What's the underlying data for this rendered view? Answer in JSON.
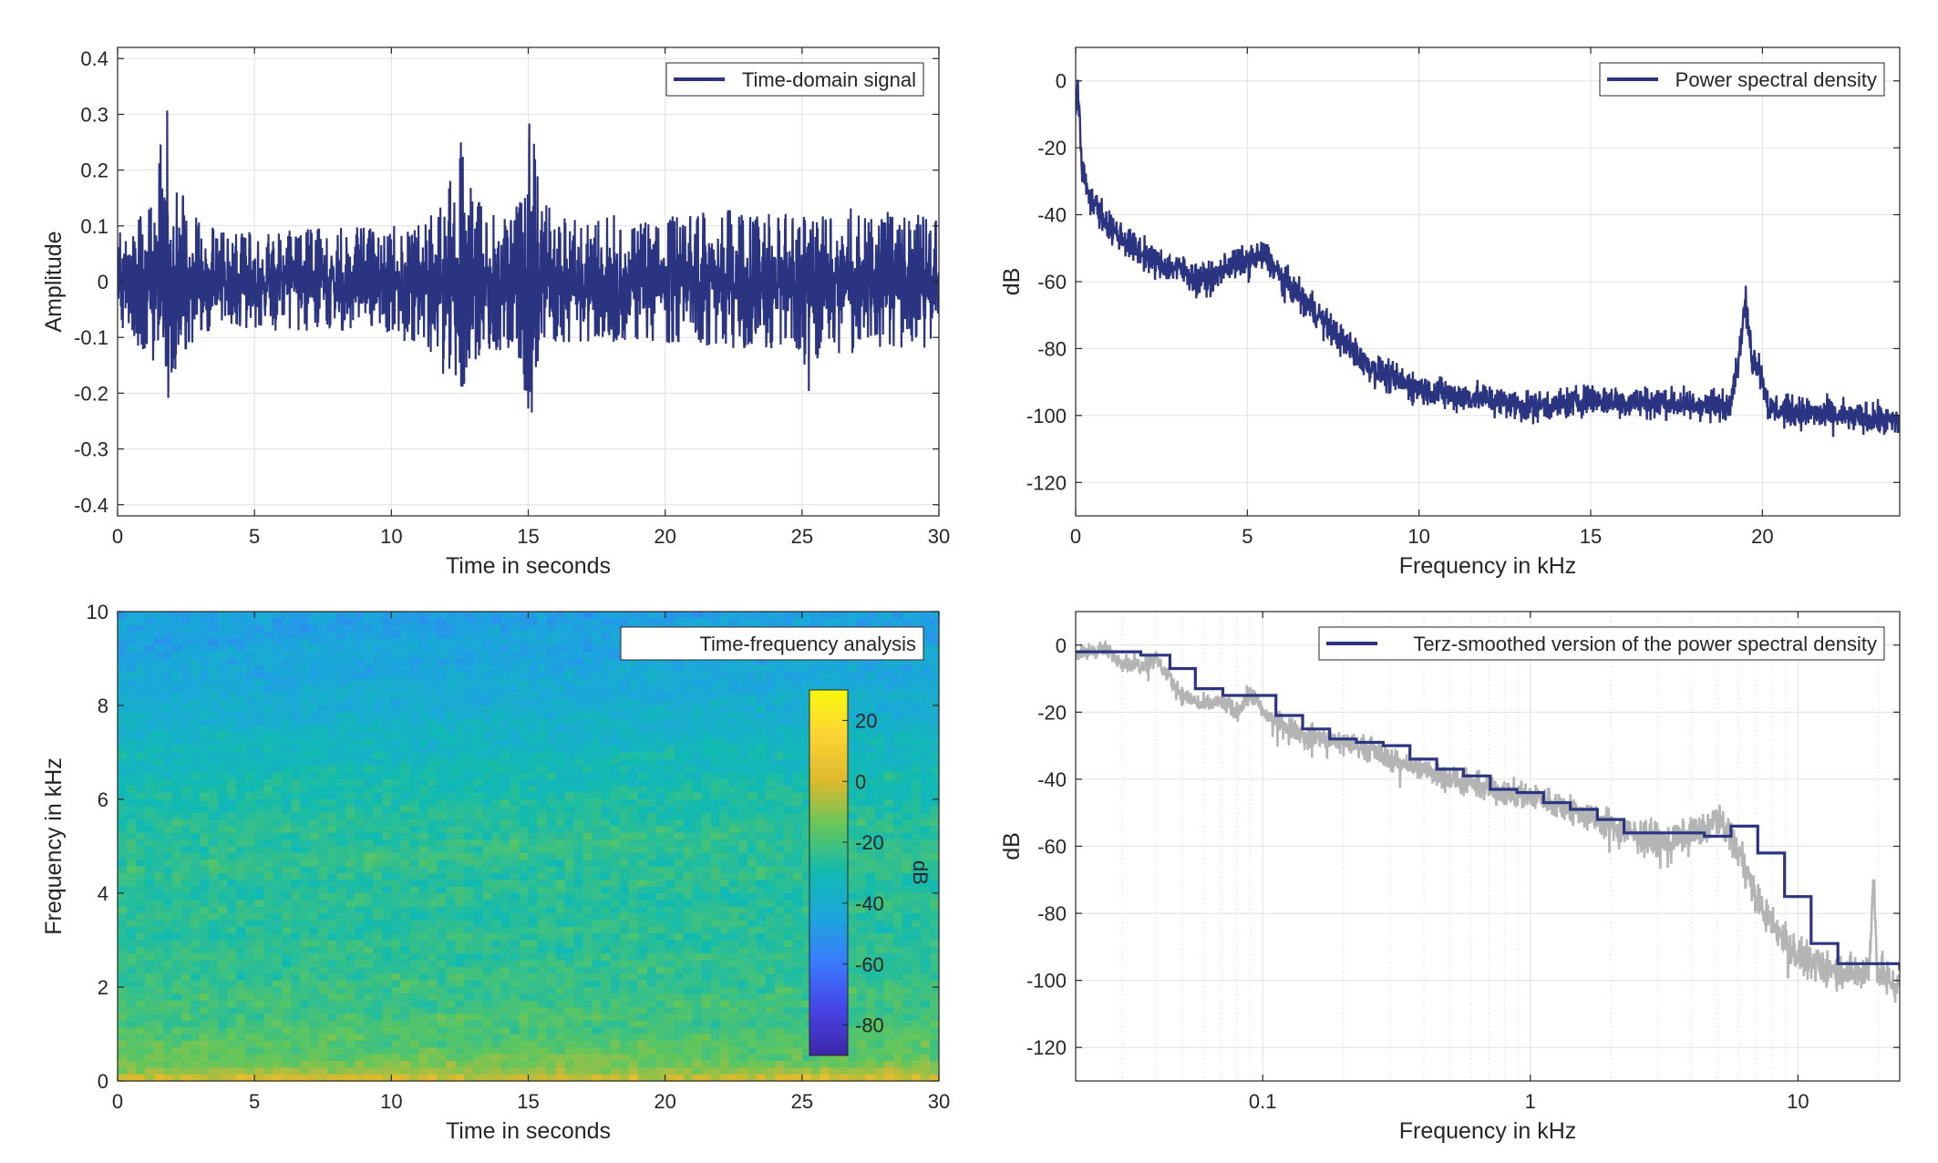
{
  "colors": {
    "series_main": "#2b3480",
    "series_raw_gray": "#b4b4b4",
    "grid": "#e1e1e1",
    "axis": "#262626",
    "colormap": [
      "#3e26a8",
      "#4744e5",
      "#3a79fc",
      "#1ca6dd",
      "#11bab1",
      "#62c65c",
      "#ddb92d",
      "#fcd334",
      "#f8fa0d"
    ]
  },
  "chart_data": [
    {
      "id": "time_domain",
      "type": "line",
      "xlabel": "Time in seconds",
      "ylabel": "Amplitude",
      "xlim": [
        0,
        30
      ],
      "ylim": [
        -0.42,
        0.42
      ],
      "xticks": [
        0,
        5,
        10,
        15,
        20,
        25,
        30
      ],
      "xtick_labels": [
        "0",
        "5",
        "10",
        "15",
        "20",
        "25",
        "30"
      ],
      "yticks": [
        0.4,
        0.3,
        0.2,
        0.1,
        0,
        -0.1,
        -0.2,
        -0.3,
        -0.4
      ],
      "ytick_labels": [
        "0.4",
        "0.3",
        "0.2",
        "0.1",
        "0",
        "-0.1",
        "-0.2",
        "-0.3",
        "-0.4"
      ],
      "grid": true,
      "legend": "top-right",
      "series": [
        {
          "name": "Time-domain signal",
          "envelope_t": [
            0,
            0.5,
            1.0,
            1.4,
            1.7,
            1.8,
            1.9,
            2.2,
            2.6,
            3.0,
            4.0,
            6.0,
            8.0,
            10.0,
            11.5,
            12.0,
            12.5,
            12.7,
            12.9,
            13.5,
            14.5,
            14.9,
            15.1,
            15.3,
            15.6,
            16.0,
            18.0,
            20.0,
            22.0,
            24.0,
            25.0,
            25.3,
            25.6,
            27.0,
            28.5,
            30.0
          ],
          "envelope_upper": [
            0.1,
            0.11,
            0.13,
            0.18,
            0.3,
            0.34,
            0.24,
            0.18,
            0.13,
            0.11,
            0.09,
            0.09,
            0.1,
            0.1,
            0.12,
            0.17,
            0.25,
            0.28,
            0.17,
            0.13,
            0.13,
            0.2,
            0.35,
            0.23,
            0.15,
            0.12,
            0.12,
            0.12,
            0.13,
            0.12,
            0.13,
            0.12,
            0.12,
            0.14,
            0.13,
            0.11
          ],
          "envelope_lower": [
            -0.09,
            -0.1,
            -0.13,
            -0.18,
            -0.25,
            -0.27,
            -0.21,
            -0.15,
            -0.12,
            -0.1,
            -0.08,
            -0.09,
            -0.09,
            -0.1,
            -0.13,
            -0.18,
            -0.2,
            -0.19,
            -0.16,
            -0.12,
            -0.13,
            -0.2,
            -0.26,
            -0.18,
            -0.13,
            -0.11,
            -0.11,
            -0.11,
            -0.12,
            -0.12,
            -0.13,
            -0.21,
            -0.13,
            -0.13,
            -0.12,
            -0.12
          ]
        }
      ]
    },
    {
      "id": "psd",
      "type": "line",
      "xlabel": "Frequency in kHz",
      "ylabel": "dB",
      "xlim": [
        0,
        24
      ],
      "ylim": [
        -130,
        10
      ],
      "xticks": [
        0,
        5,
        10,
        15,
        20
      ],
      "xtick_labels": [
        "0",
        "5",
        "10",
        "15",
        "20"
      ],
      "yticks": [
        0,
        -20,
        -40,
        -60,
        -80,
        -100,
        -120
      ],
      "ytick_labels": [
        "0",
        "-20",
        "-40",
        "-60",
        "-80",
        "-100",
        "-120"
      ],
      "grid": true,
      "legend": "top-right",
      "series": [
        {
          "name": "Power spectral density",
          "x": [
            0,
            0.05,
            0.2,
            0.5,
            1.0,
            1.5,
            2.0,
            2.5,
            3.0,
            3.5,
            4.0,
            4.5,
            5.0,
            5.5,
            6.0,
            6.5,
            7.0,
            7.5,
            8.0,
            8.5,
            9.0,
            9.5,
            10.0,
            11.0,
            12.0,
            13.0,
            14.0,
            15.0,
            16.0,
            17.0,
            18.0,
            18.5,
            19.0,
            19.3,
            19.5,
            19.7,
            19.9,
            20.2,
            21.0,
            22.0,
            23.0,
            24.0
          ],
          "y": [
            -10,
            0,
            -28,
            -36,
            -44,
            -48,
            -52,
            -55,
            -56,
            -59,
            -59,
            -55,
            -54,
            -52,
            -59,
            -64,
            -69,
            -75,
            -80,
            -85,
            -88,
            -90,
            -92,
            -94,
            -95,
            -97,
            -97,
            -95,
            -96,
            -96,
            -97,
            -97,
            -97,
            -84,
            -66,
            -83,
            -85,
            -98,
            -99,
            -100,
            -101,
            -102
          ],
          "spread": 4
        }
      ]
    },
    {
      "id": "spectrogram",
      "type": "heatmap",
      "xlabel": "Time in seconds",
      "ylabel": "Frequency in kHz",
      "xlim": [
        0,
        30
      ],
      "ylim": [
        0,
        10
      ],
      "xticks": [
        0,
        5,
        10,
        15,
        20,
        25,
        30
      ],
      "xtick_labels": [
        "0",
        "5",
        "10",
        "15",
        "20",
        "25",
        "30"
      ],
      "yticks": [
        0,
        2,
        4,
        6,
        8,
        10
      ],
      "ytick_labels": [
        "0",
        "2",
        "4",
        "6",
        "8",
        "10"
      ],
      "legend": "top-right",
      "legend_label": "Time-frequency analysis",
      "colorbar": {
        "label": "dB",
        "range": [
          -90,
          30
        ],
        "ticks": [
          20,
          0,
          -20,
          -40,
          -60,
          -80
        ],
        "tick_labels": [
          "20",
          "0",
          "-20",
          "-40",
          "-60",
          "-80"
        ]
      },
      "level_freq_khz": [
        0,
        0.1,
        0.3,
        0.6,
        1.0,
        1.5,
        2.0,
        3.0,
        4.0,
        5.0,
        6.0,
        7.0,
        8.0,
        9.0,
        10.0
      ],
      "level_db": [
        2,
        -4,
        -12,
        -16,
        -19,
        -21,
        -23,
        -25,
        -26,
        -24,
        -28,
        -33,
        -40,
        -44,
        -47
      ]
    },
    {
      "id": "terz_smoothed",
      "type": "line",
      "xlabel": "Frequency in kHz",
      "ylabel": "dB",
      "xscale": "log",
      "xlim": [
        0.02,
        24
      ],
      "ylim": [
        -130,
        10
      ],
      "xticks": [
        0.1,
        1,
        10
      ],
      "xtick_labels": [
        "0.1",
        "1",
        "10"
      ],
      "yticks": [
        0,
        -20,
        -40,
        -60,
        -80,
        -100,
        -120
      ],
      "ytick_labels": [
        "0",
        "-20",
        "-40",
        "-60",
        "-80",
        "-100",
        "-120"
      ],
      "grid": true,
      "legend": "top-right",
      "series": [
        {
          "name": "Terz-smoothed version of the power spectral density",
          "band_edges": [
            0.02,
            0.035,
            0.045,
            0.056,
            0.071,
            0.089,
            0.112,
            0.141,
            0.178,
            0.224,
            0.282,
            0.355,
            0.447,
            0.562,
            0.708,
            0.891,
            1.12,
            1.41,
            1.78,
            2.24,
            2.82,
            3.55,
            4.47,
            5.62,
            7.08,
            8.91,
            11.2,
            14.1,
            17.8,
            24.0
          ],
          "band_db": [
            -2,
            -3,
            -7,
            -13,
            -15,
            -15,
            -21,
            -25,
            -28,
            -29,
            -30,
            -34,
            -37,
            -39,
            -43,
            -44,
            -47,
            -49,
            -52,
            -56,
            -56,
            -56,
            -57,
            -54,
            -62,
            -75,
            -89,
            -95,
            -95,
            -97
          ]
        },
        {
          "raw": true,
          "x": [
            0.02,
            0.025,
            0.03,
            0.035,
            0.04,
            0.045,
            0.05,
            0.06,
            0.07,
            0.08,
            0.09,
            0.1,
            0.12,
            0.15,
            0.2,
            0.25,
            0.3,
            0.4,
            0.5,
            0.7,
            1.0,
            1.3,
            1.6,
            2.0,
            2.5,
            3.0,
            3.5,
            4.0,
            4.5,
            5.0,
            5.5,
            6.0,
            6.5,
            7.0,
            8.0,
            9.0,
            10.0,
            12.0,
            15.0,
            17.0,
            18.5,
            19.2,
            19.6,
            20.0,
            22.0,
            24.0
          ],
          "y": [
            -3,
            -1,
            -5,
            -6,
            -4,
            -10,
            -15,
            -18,
            -17,
            -20,
            -14,
            -20,
            -24,
            -27,
            -29,
            -31,
            -34,
            -37,
            -40,
            -43,
            -45,
            -48,
            -51,
            -54,
            -57,
            -58,
            -58,
            -56,
            -55,
            -52,
            -55,
            -62,
            -68,
            -76,
            -83,
            -88,
            -93,
            -96,
            -97,
            -98,
            -96,
            -68,
            -90,
            -98,
            -100,
            -102
          ]
        }
      ]
    }
  ]
}
